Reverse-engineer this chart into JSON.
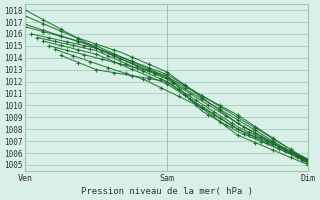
{
  "title": "Pression niveau de la mer( hPa )",
  "ylabel_ticks": [
    1005,
    1006,
    1007,
    1008,
    1009,
    1010,
    1011,
    1012,
    1013,
    1014,
    1015,
    1016,
    1017,
    1018
  ],
  "xtick_labels": [
    "Ven",
    "Sam",
    "Dim"
  ],
  "xtick_positions": [
    0,
    48,
    96
  ],
  "xlim": [
    0,
    96
  ],
  "ylim": [
    1004.5,
    1018.5
  ],
  "bg_color": "#d8f0e8",
  "grid_color": "#a0c8b0",
  "line_color": "#1a6b2a",
  "lines": [
    [
      0,
      1018,
      96,
      1005.2
    ],
    [
      0,
      1016.5,
      96,
      1005.3
    ],
    [
      4,
      1015.8,
      96,
      1005.1
    ],
    [
      6,
      1015.5,
      96,
      1005.4
    ],
    [
      8,
      1015.2,
      60,
      1009.0
    ],
    [
      10,
      1014.8,
      70,
      1007.8
    ],
    [
      12,
      1014.2,
      80,
      1006.8
    ],
    [
      14,
      1013.8,
      90,
      1006.0
    ],
    [
      16,
      1013.2,
      96,
      1005.5
    ]
  ],
  "marker_x_spacing": 6,
  "figsize": [
    3.2,
    2.0
  ],
  "dpi": 100
}
